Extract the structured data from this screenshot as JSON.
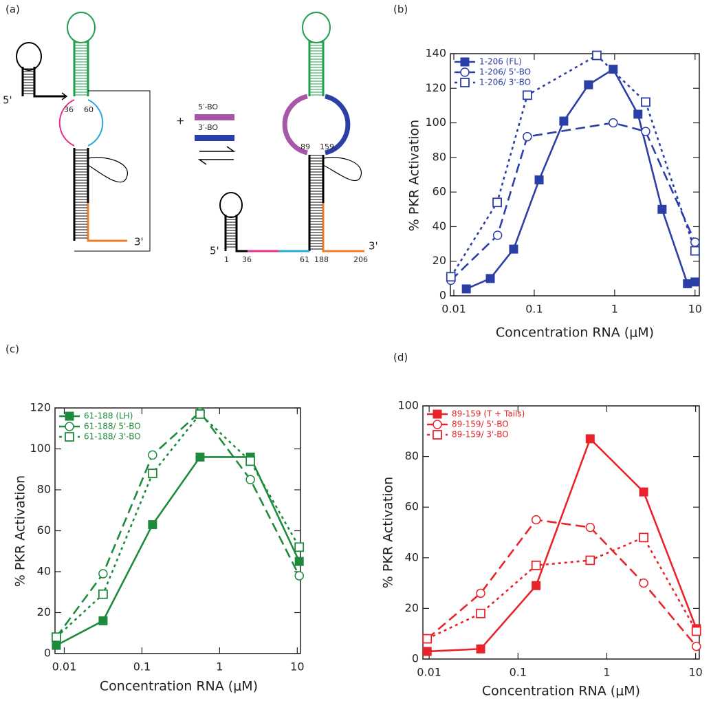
{
  "panel_labels": [
    "(a)",
    "(b)",
    "(c)",
    "(d)"
  ],
  "diagram": {
    "left": {
      "five_prime": "5'",
      "three_prime": "3'",
      "n36": "36",
      "n60": "60"
    },
    "reagents": {
      "plus": "+",
      "bo5": "5′-BO",
      "bo3": "3′-BO"
    },
    "right": {
      "n89": "89",
      "n159": "159",
      "five_prime": "5'",
      "three_prime": "3'",
      "positions": [
        "1",
        "36",
        "61",
        "188",
        "206"
      ]
    }
  },
  "chart_data": [
    {
      "type": "line",
      "xscale": "log",
      "xlabel": "Concentration RNA (μM)",
      "ylabel": "% PKR Activation",
      "xlim": [
        0.00906,
        11.3
      ],
      "ylim": [
        0,
        140
      ],
      "xticks": [
        0.01,
        0.1,
        1,
        10
      ],
      "yticks": [
        0,
        20,
        40,
        60,
        80,
        100,
        120,
        140
      ],
      "legend": "upper left",
      "series": [
        {
          "name": "1-206 (FL)",
          "color": "#2b3fa6",
          "marker": "filled-square",
          "dash": "solid",
          "x": [
            0.0143,
            0.0284,
            0.0554,
            0.115,
            0.233,
            0.473,
            0.96,
            1.95,
            3.89,
            8.05,
            10
          ],
          "values": [
            4,
            10,
            27,
            67,
            101,
            122,
            131,
            105,
            50,
            7,
            8
          ]
        },
        {
          "name": "1-206/ 5'-BO",
          "color": "#2b3fa6",
          "marker": "open-circle",
          "dash": "dashed",
          "x": [
            0.0092,
            0.035,
            0.082,
            0.96,
            2.43,
            10
          ],
          "values": [
            9,
            35,
            92,
            100,
            95,
            31
          ]
        },
        {
          "name": "1-206/ 3'-BO",
          "color": "#2b3fa6",
          "marker": "open-square",
          "dash": "dotted",
          "x": [
            0.0092,
            0.0346,
            0.082,
            0.6,
            2.43,
            10
          ],
          "values": [
            11,
            54,
            116,
            139,
            112,
            26
          ]
        }
      ]
    },
    {
      "type": "line",
      "xscale": "log",
      "xlabel": "Concentration RNA (μM)",
      "ylabel": "% PKR Activation",
      "xlim": [
        0.0076,
        11
      ],
      "ylim": [
        0,
        120
      ],
      "xticks": [
        0.01,
        0.1,
        1,
        10
      ],
      "yticks": [
        0,
        20,
        40,
        60,
        80,
        100,
        120
      ],
      "legend": "upper left",
      "series": [
        {
          "name": "61-188 (LH)",
          "color": "#1e8a3c",
          "marker": "filled-square",
          "dash": "solid",
          "x": [
            0.0079,
            0.0316,
            0.137,
            0.56,
            2.49,
            10.6
          ],
          "values": [
            4,
            16,
            63,
            96,
            96,
            45
          ]
        },
        {
          "name": "61-188/ 5'-BO",
          "color": "#1e8a3c",
          "marker": "open-circle",
          "dash": "dashed",
          "x": [
            0.0079,
            0.0316,
            0.137,
            0.56,
            2.49,
            10.6
          ],
          "values": [
            8,
            39,
            97,
            118,
            85,
            38
          ]
        },
        {
          "name": "61-188/ 3'-BO",
          "color": "#1e8a3c",
          "marker": "open-square",
          "dash": "dotted",
          "x": [
            0.0079,
            0.0316,
            0.137,
            0.56,
            2.49,
            10.6
          ],
          "values": [
            8,
            29,
            88,
            117,
            94,
            52
          ]
        }
      ]
    },
    {
      "type": "line",
      "xscale": "log",
      "xlabel": "Concentration RNA (μM)",
      "ylabel": "% PKR Activation",
      "xlim": [
        0.0085,
        11
      ],
      "ylim": [
        0,
        100
      ],
      "xticks": [
        0.01,
        0.1,
        1,
        10
      ],
      "yticks": [
        0,
        20,
        40,
        60,
        80,
        100
      ],
      "legend": "upper left",
      "series": [
        {
          "name": "89-159 (T + Tails)",
          "color": "#e8232a",
          "marker": "filled-square",
          "dash": "solid",
          "x": [
            0.0095,
            0.038,
            0.16,
            0.65,
            2.6,
            10.2
          ],
          "values": [
            3,
            4,
            29,
            87,
            66,
            12
          ]
        },
        {
          "name": "89-159/ 5'-BO",
          "color": "#e8232a",
          "marker": "open-circle",
          "dash": "dashed",
          "x": [
            0.0095,
            0.038,
            0.16,
            0.65,
            2.6,
            10.2
          ],
          "values": [
            8,
            26,
            55,
            52,
            30,
            5
          ]
        },
        {
          "name": "89-159/ 3'-BO",
          "color": "#e8232a",
          "marker": "open-square",
          "dash": "dotted",
          "x": [
            0.0095,
            0.038,
            0.16,
            0.65,
            2.6,
            10.2
          ],
          "values": [
            8,
            18,
            37,
            39,
            48,
            11
          ]
        }
      ]
    }
  ]
}
